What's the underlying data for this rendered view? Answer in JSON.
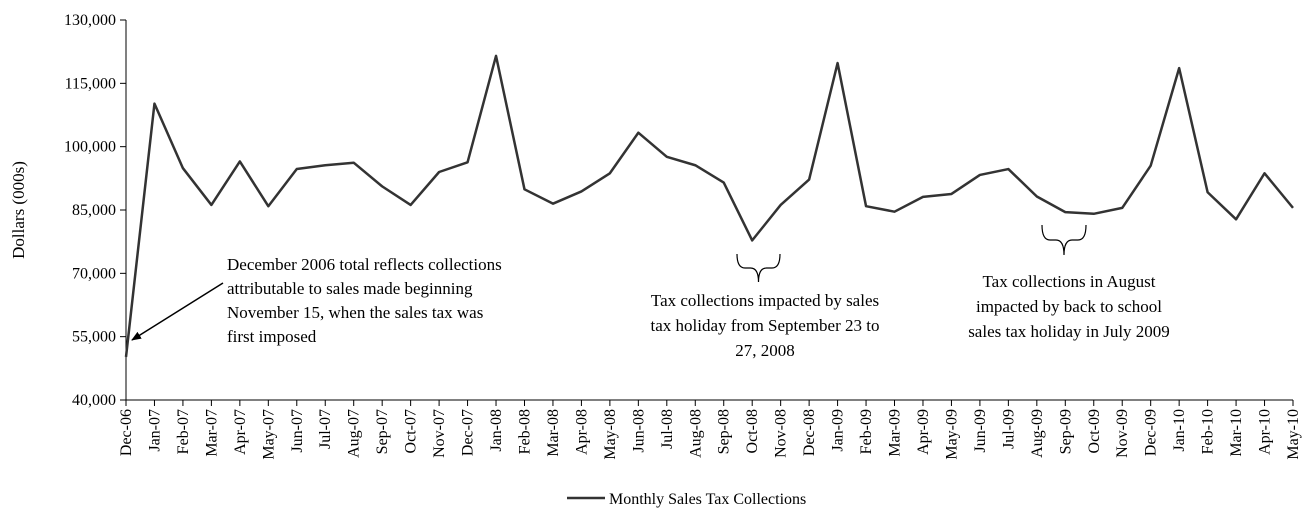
{
  "chart_data": {
    "type": "line",
    "ylabel": "Dollars (000s)",
    "ylim": [
      40000,
      130000
    ],
    "yticks": [
      "40,000",
      "55,000",
      "70,000",
      "85,000",
      "100,000",
      "115,000",
      "130,000"
    ],
    "ytick_values": [
      40000,
      55000,
      70000,
      85000,
      100000,
      115000,
      130000
    ],
    "grid": false,
    "legend_position": "bottom-center",
    "categories": [
      "Dec-06",
      "Jan-07",
      "Feb-07",
      "Mar-07",
      "Apr-07",
      "May-07",
      "Jun-07",
      "Jul-07",
      "Aug-07",
      "Sep-07",
      "Oct-07",
      "Nov-07",
      "Dec-07",
      "Jan-08",
      "Feb-08",
      "Mar-08",
      "Apr-08",
      "May-08",
      "Jun-08",
      "Jul-08",
      "Aug-08",
      "Sep-08",
      "Oct-08",
      "Nov-08",
      "Dec-08",
      "Jan-09",
      "Feb-09",
      "Mar-09",
      "Apr-09",
      "May-09",
      "Jun-09",
      "Jul-09",
      "Aug-09",
      "Sep-09",
      "Oct-09",
      "Nov-09",
      "Dec-09",
      "Jan-10",
      "Feb-10",
      "Mar-10",
      "Apr-10",
      "May-10"
    ],
    "series": [
      {
        "name": "Monthly Sales Tax Collections",
        "color": "#333333",
        "values": [
          50200,
          110200,
          94900,
          86200,
          96500,
          85900,
          94700,
          95600,
          96200,
          90600,
          86200,
          94000,
          96300,
          121500,
          89900,
          86500,
          89400,
          93700,
          103300,
          97600,
          95600,
          91500,
          77800,
          86200,
          92200,
          119800,
          85900,
          84600,
          88100,
          88800,
          93300,
          94700,
          88200,
          84500,
          84100,
          85500,
          95500,
          118600,
          89200,
          82800,
          93700,
          85500
        ]
      }
    ],
    "annotations": [
      {
        "lines": [
          "December 2006 total reflects collections",
          "attributable to sales made beginning",
          "November 15, when the sales tax was",
          "first imposed"
        ]
      },
      {
        "lines": [
          "Tax collections impacted by sales",
          "tax holiday from September 23 to",
          "27, 2008"
        ]
      },
      {
        "lines": [
          "Tax collections in August",
          "impacted by back to school",
          "sales tax holiday in July 2009"
        ]
      }
    ]
  }
}
